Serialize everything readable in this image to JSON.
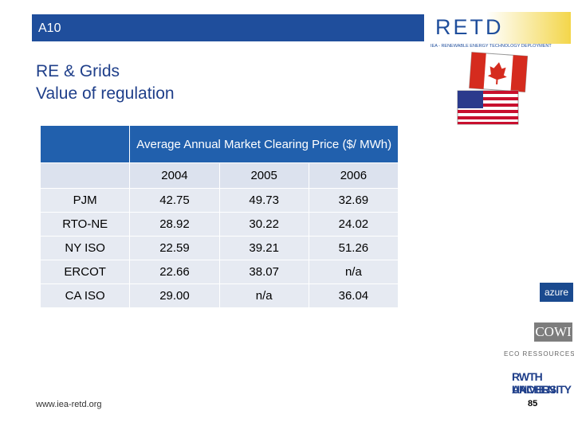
{
  "header": {
    "section": "A10",
    "logo": "RETD",
    "logo_tagline": "IEA - RENEWABLE ENERGY TECHNOLOGY DEPLOYMENT"
  },
  "title": {
    "line1": "RE & Grids",
    "line2": "Value of regulation"
  },
  "table": {
    "caption": "Average Annual Market Clearing Price ($/ MWh)",
    "columns": [
      "2004",
      "2005",
      "2006"
    ],
    "rows": [
      [
        "PJM",
        "42.75",
        "49.73",
        "32.69"
      ],
      [
        "RTO-NE",
        "28.92",
        "30.22",
        "24.02"
      ],
      [
        "NY ISO",
        "22.59",
        "39.21",
        "51.26"
      ],
      [
        "ERCOT",
        "22.66",
        "38.07",
        "n/a"
      ],
      [
        "CA ISO",
        "29.00",
        "n/a",
        "36.04"
      ]
    ]
  },
  "partners": [
    "azure",
    "COWI",
    "ECO RESSOURCES",
    "RWTH AACHEN",
    "UNIVERSITY"
  ],
  "footer": {
    "url": "www.iea-retd.org",
    "page": "85"
  }
}
